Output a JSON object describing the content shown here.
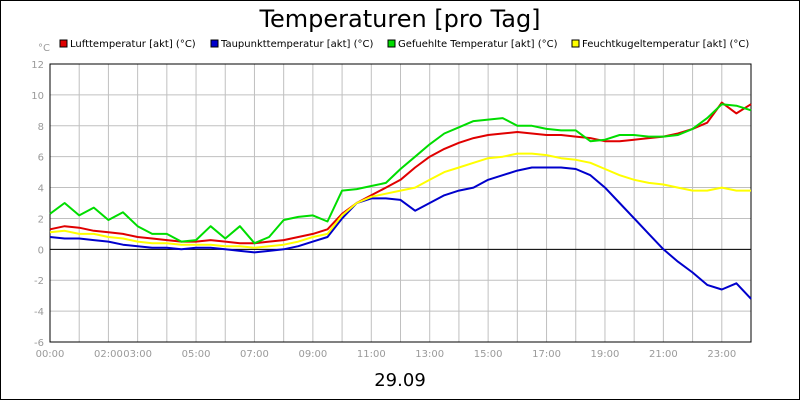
{
  "chart_data": {
    "type": "line",
    "title": "Temperaturen [pro Tag]",
    "unit_label": "°C",
    "xlabel": "29.09",
    "ylim": [
      -6,
      12
    ],
    "y_ticks": [
      "12",
      "10",
      "8",
      "6",
      "4",
      "2",
      "0",
      "-2",
      "-4",
      "-6"
    ],
    "xlim": [
      0,
      24
    ],
    "x_ticks": [
      {
        "hour": 0,
        "label": "00:00"
      },
      {
        "hour": 2,
        "label": "02:00"
      },
      {
        "hour": 3,
        "label": "03:00"
      },
      {
        "hour": 5,
        "label": "05:00"
      },
      {
        "hour": 7,
        "label": "07:00"
      },
      {
        "hour": 9,
        "label": "09:00"
      },
      {
        "hour": 11,
        "label": "11:00"
      },
      {
        "hour": 13,
        "label": "13:00"
      },
      {
        "hour": 15,
        "label": "15:00"
      },
      {
        "hour": 17,
        "label": "17:00"
      },
      {
        "hour": 19,
        "label": "19:00"
      },
      {
        "hour": 21,
        "label": "21:00"
      },
      {
        "hour": 23,
        "label": "23:00"
      }
    ],
    "grid": true,
    "legend_position": "top",
    "series": [
      {
        "name": "Lufttemperatur [akt] (°C)",
        "color": "#e00000",
        "x": [
          0,
          0.5,
          1,
          1.5,
          2,
          2.5,
          3,
          3.5,
          4,
          4.5,
          5,
          5.5,
          6,
          6.5,
          7,
          7.5,
          8,
          8.5,
          9,
          9.5,
          10,
          10.5,
          11,
          11.5,
          12,
          12.5,
          13,
          13.5,
          14,
          14.5,
          15,
          15.5,
          16,
          16.5,
          17,
          17.5,
          18,
          18.5,
          19,
          19.5,
          20,
          20.5,
          21,
          21.5,
          22,
          22.5,
          23,
          23.5,
          24
        ],
        "y": [
          1.3,
          1.5,
          1.4,
          1.2,
          1.1,
          1.0,
          0.8,
          0.7,
          0.6,
          0.5,
          0.5,
          0.6,
          0.5,
          0.4,
          0.4,
          0.5,
          0.6,
          0.8,
          1.0,
          1.3,
          2.3,
          3.0,
          3.5,
          4.0,
          4.5,
          5.3,
          6.0,
          6.5,
          6.9,
          7.2,
          7.4,
          7.5,
          7.6,
          7.5,
          7.4,
          7.4,
          7.3,
          7.2,
          7.0,
          7.0,
          7.1,
          7.2,
          7.3,
          7.5,
          7.8,
          8.2,
          9.5,
          8.8,
          9.4
        ]
      },
      {
        "name": "Taupunkttemperatur [akt] (°C)",
        "color": "#0000cc",
        "x": [
          0,
          0.5,
          1,
          1.5,
          2,
          2.5,
          3,
          3.5,
          4,
          4.5,
          5,
          5.5,
          6,
          6.5,
          7,
          7.5,
          8,
          8.5,
          9,
          9.5,
          10,
          10.5,
          11,
          11.5,
          12,
          12.5,
          13,
          13.5,
          14,
          14.5,
          15,
          15.5,
          16,
          16.5,
          17,
          17.5,
          18,
          18.5,
          19,
          19.5,
          20,
          20.5,
          21,
          21.5,
          22,
          22.5,
          23,
          23.5,
          24
        ],
        "y": [
          0.8,
          0.7,
          0.7,
          0.6,
          0.5,
          0.3,
          0.2,
          0.1,
          0.1,
          0.0,
          0.1,
          0.1,
          0.0,
          -0.1,
          -0.2,
          -0.1,
          0.0,
          0.2,
          0.5,
          0.8,
          2.0,
          3.0,
          3.3,
          3.3,
          3.2,
          2.5,
          3.0,
          3.5,
          3.8,
          4.0,
          4.5,
          4.8,
          5.1,
          5.3,
          5.3,
          5.3,
          5.2,
          4.8,
          4.0,
          3.0,
          2.0,
          1.0,
          0.0,
          -0.8,
          -1.5,
          -2.3,
          -2.6,
          -2.2,
          -3.2
        ]
      },
      {
        "name": "Gefuehlte Temperatur [akt] (°C)",
        "color": "#00dd00",
        "x": [
          0,
          0.5,
          1,
          1.5,
          2,
          2.5,
          3,
          3.5,
          4,
          4.5,
          5,
          5.5,
          6,
          6.5,
          7,
          7.5,
          8,
          8.5,
          9,
          9.5,
          10,
          10.5,
          11,
          11.5,
          12,
          12.5,
          13,
          13.5,
          14,
          14.5,
          15,
          15.5,
          16,
          16.5,
          17,
          17.5,
          18,
          18.5,
          19,
          19.5,
          20,
          20.5,
          21,
          21.5,
          22,
          22.5,
          23,
          23.5,
          24
        ],
        "y": [
          2.3,
          3.0,
          2.2,
          2.7,
          1.9,
          2.4,
          1.5,
          1.0,
          1.0,
          0.5,
          0.6,
          1.5,
          0.7,
          1.5,
          0.4,
          0.8,
          1.9,
          2.1,
          2.2,
          1.8,
          3.8,
          3.9,
          4.1,
          4.3,
          5.2,
          6.0,
          6.8,
          7.5,
          7.9,
          8.3,
          8.4,
          8.5,
          8.0,
          8.0,
          7.8,
          7.7,
          7.7,
          7.0,
          7.1,
          7.4,
          7.4,
          7.3,
          7.3,
          7.4,
          7.8,
          8.5,
          9.4,
          9.3,
          9.0
        ]
      },
      {
        "name": "Feuchtkugeltemperatur [akt] (°C)",
        "color": "#ffff00",
        "x": [
          0,
          0.5,
          1,
          1.5,
          2,
          2.5,
          3,
          3.5,
          4,
          4.5,
          5,
          5.5,
          6,
          6.5,
          7,
          7.5,
          8,
          8.5,
          9,
          9.5,
          10,
          10.5,
          11,
          11.5,
          12,
          12.5,
          13,
          13.5,
          14,
          14.5,
          15,
          15.5,
          16,
          16.5,
          17,
          17.5,
          18,
          18.5,
          19,
          19.5,
          20,
          20.5,
          21,
          21.5,
          22,
          22.5,
          23,
          23.5,
          24
        ],
        "y": [
          1.1,
          1.2,
          1.0,
          1.0,
          0.8,
          0.7,
          0.5,
          0.4,
          0.4,
          0.3,
          0.3,
          0.3,
          0.2,
          0.2,
          0.1,
          0.2,
          0.3,
          0.5,
          0.8,
          1.0,
          2.2,
          3.0,
          3.4,
          3.6,
          3.8,
          4.0,
          4.5,
          5.0,
          5.3,
          5.6,
          5.9,
          6.0,
          6.2,
          6.2,
          6.1,
          5.9,
          5.8,
          5.6,
          5.2,
          4.8,
          4.5,
          4.3,
          4.2,
          4.0,
          3.8,
          3.8,
          4.0,
          3.8,
          3.8
        ]
      }
    ]
  }
}
